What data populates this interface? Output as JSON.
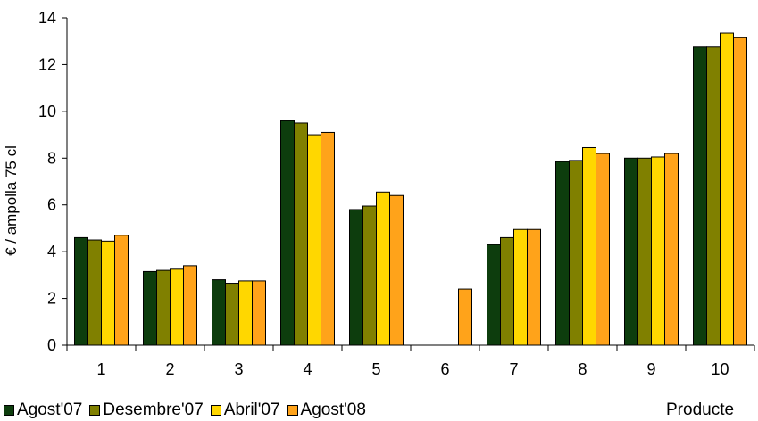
{
  "chart_data": {
    "type": "bar",
    "categories": [
      "1",
      "2",
      "3",
      "4",
      "5",
      "6",
      "7",
      "8",
      "9",
      "10"
    ],
    "series": [
      {
        "name": "Agost'07",
        "color": "#0d3d0d",
        "values": [
          4.6,
          3.15,
          2.8,
          9.6,
          5.8,
          null,
          4.3,
          7.85,
          8.0,
          12.75
        ]
      },
      {
        "name": "Desembre'07",
        "color": "#808000",
        "values": [
          4.5,
          3.2,
          2.65,
          9.5,
          5.95,
          null,
          4.6,
          7.9,
          8.0,
          12.75
        ]
      },
      {
        "name": "Abril'07",
        "color": "#ffd700",
        "values": [
          4.45,
          3.25,
          2.75,
          9.0,
          6.55,
          null,
          4.95,
          8.45,
          8.05,
          13.35
        ]
      },
      {
        "name": "Agost'08",
        "color": "#ffa31a",
        "values": [
          4.7,
          3.4,
          2.75,
          9.1,
          6.4,
          2.4,
          4.95,
          8.2,
          8.2,
          13.15
        ]
      }
    ],
    "xlabel": "Producte",
    "ylabel": "€ / ampolla 75 cl",
    "ylim": [
      0,
      14
    ],
    "yticks": [
      0,
      2,
      4,
      6,
      8,
      10,
      12,
      14
    ],
    "grid": false,
    "legend": "bottom-left"
  }
}
